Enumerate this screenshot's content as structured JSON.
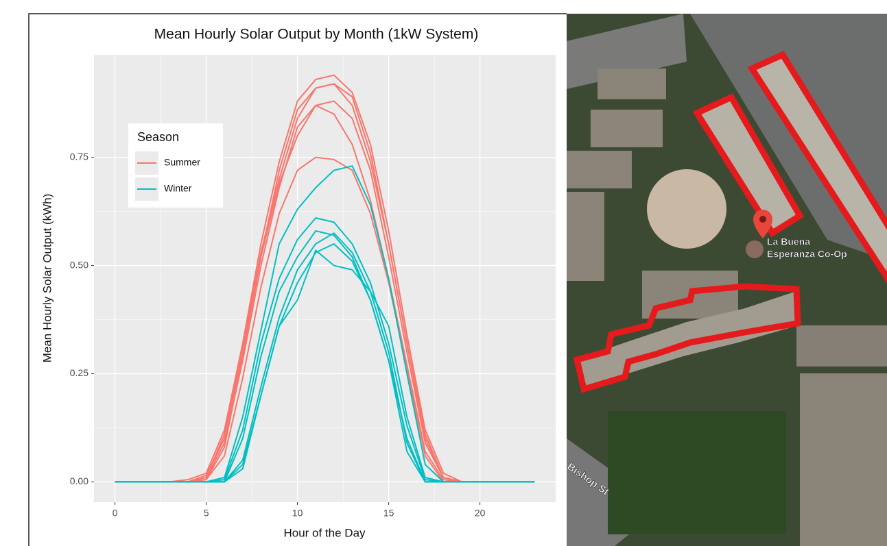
{
  "chart_data": {
    "type": "line",
    "title": "Mean Hourly Solar Output by Month (1kW System)",
    "x_label": "Hour of the Day",
    "y_label": "Mean Hourly Solar Output (kWh)",
    "legend_title": "Season",
    "legend_position": "top-left",
    "grid": true,
    "x": [
      0,
      1,
      2,
      3,
      4,
      5,
      6,
      7,
      8,
      9,
      10,
      11,
      12,
      13,
      14,
      15,
      16,
      17,
      18,
      19,
      20,
      21,
      22,
      23
    ],
    "xlim": [
      -1.15,
      24.15
    ],
    "xticks": [
      0,
      5,
      10,
      15,
      20
    ],
    "ylim": [
      -0.047,
      0.987
    ],
    "yticks": [
      {
        "value": 0,
        "label": "0.00"
      },
      {
        "value": 0.25,
        "label": "0.25"
      },
      {
        "value": 0.5,
        "label": "0.50"
      },
      {
        "value": 0.75,
        "label": "0.75"
      }
    ],
    "series": [
      {
        "name": "Summer",
        "color": "#F8766D",
        "values": [
          [
            0,
            0,
            0,
            0,
            0.005,
            0.02,
            0.12,
            0.32,
            0.55,
            0.74,
            0.88,
            0.93,
            0.94,
            0.9,
            0.78,
            0.58,
            0.34,
            0.12,
            0.02,
            0,
            0,
            0,
            0,
            0
          ],
          [
            0,
            0,
            0,
            0,
            0,
            0.015,
            0.1,
            0.3,
            0.52,
            0.72,
            0.86,
            0.91,
            0.92,
            0.89,
            0.76,
            0.55,
            0.32,
            0.1,
            0.01,
            0,
            0,
            0,
            0,
            0
          ],
          [
            0,
            0,
            0,
            0,
            0,
            0.01,
            0.09,
            0.28,
            0.5,
            0.68,
            0.82,
            0.87,
            0.88,
            0.84,
            0.72,
            0.52,
            0.3,
            0.09,
            0.01,
            0,
            0,
            0,
            0,
            0
          ],
          [
            0,
            0,
            0,
            0,
            0,
            0.005,
            0.08,
            0.29,
            0.52,
            0.69,
            0.8,
            0.87,
            0.85,
            0.78,
            0.65,
            0.47,
            0.27,
            0.07,
            0.005,
            0,
            0,
            0,
            0,
            0
          ],
          [
            0,
            0,
            0,
            0,
            0,
            0.005,
            0.06,
            0.24,
            0.45,
            0.62,
            0.72,
            0.75,
            0.745,
            0.72,
            0.62,
            0.46,
            0.26,
            0.06,
            0,
            0,
            0,
            0,
            0,
            0
          ],
          [
            0,
            0,
            0,
            0,
            0,
            0.01,
            0.11,
            0.31,
            0.53,
            0.7,
            0.84,
            0.91,
            0.92,
            0.87,
            0.74,
            0.55,
            0.32,
            0.11,
            0.01,
            0,
            0,
            0,
            0,
            0
          ]
        ]
      },
      {
        "name": "Winter",
        "color": "#00BFC4",
        "values": [
          [
            0,
            0,
            0,
            0,
            0,
            0,
            0.01,
            0.15,
            0.35,
            0.55,
            0.63,
            0.68,
            0.72,
            0.73,
            0.64,
            0.47,
            0.25,
            0.04,
            0,
            0,
            0,
            0,
            0,
            0
          ],
          [
            0,
            0,
            0,
            0,
            0,
            0,
            0.005,
            0.12,
            0.32,
            0.47,
            0.56,
            0.61,
            0.6,
            0.55,
            0.46,
            0.32,
            0.13,
            0.005,
            0,
            0,
            0,
            0,
            0,
            0
          ],
          [
            0,
            0,
            0,
            0,
            0,
            0,
            0,
            0.1,
            0.29,
            0.44,
            0.52,
            0.58,
            0.57,
            0.52,
            0.42,
            0.28,
            0.1,
            0,
            0,
            0,
            0,
            0,
            0,
            0
          ],
          [
            0,
            0,
            0,
            0,
            0,
            0,
            0,
            0.05,
            0.22,
            0.38,
            0.49,
            0.55,
            0.575,
            0.53,
            0.44,
            0.3,
            0.09,
            0,
            0,
            0,
            0,
            0,
            0,
            0
          ],
          [
            0,
            0,
            0,
            0,
            0,
            0,
            0,
            0.03,
            0.2,
            0.36,
            0.46,
            0.53,
            0.55,
            0.51,
            0.42,
            0.28,
            0.07,
            0,
            0,
            0,
            0,
            0,
            0,
            0
          ],
          [
            0,
            0,
            0,
            0,
            0,
            0,
            0,
            0.04,
            0.2,
            0.36,
            0.42,
            0.535,
            0.5,
            0.49,
            0.44,
            0.36,
            0.15,
            0.01,
            0,
            0,
            0,
            0,
            0,
            0
          ]
        ]
      }
    ]
  },
  "map": {
    "place_label": [
      "La Buena",
      "Esperanza Co-Op"
    ],
    "street_label": "Bishop St"
  }
}
